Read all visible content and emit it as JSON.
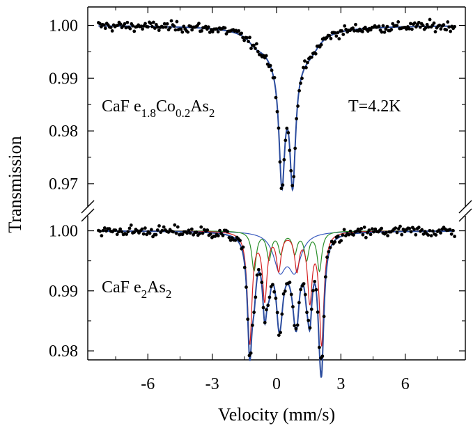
{
  "chart_data": {
    "type": "scatter",
    "xlabel": "Velocity (mm/s)",
    "ylabel": "Transmission",
    "xlim": [
      -8.8,
      8.8
    ],
    "x_ticks": [
      -6,
      -3,
      0,
      3,
      6
    ],
    "x_tick_labels": [
      "-6",
      "-3",
      "0",
      "3",
      "6"
    ],
    "grid": false,
    "panels": [
      {
        "annotation_main": "CaF e",
        "annotation_sub1": "1.8",
        "annotation_mid": "Co",
        "annotation_sub2": "0.2",
        "annotation_end": "As",
        "annotation_sub3": "2",
        "temperature_label": "T=4.2K",
        "ylim": [
          0.9655,
          1.0035
        ],
        "y_ticks": [
          0.97,
          0.98,
          0.99,
          1.0
        ],
        "y_tick_labels": [
          "0.97",
          "0.98",
          "0.99",
          "1.00"
        ],
        "fit_color": "#2b4c9e",
        "lines": [
          {
            "center": 0.25,
            "hwhm": 0.17,
            "depth": 0.024
          },
          {
            "center": 0.75,
            "hwhm": 0.17,
            "depth": 0.024
          },
          {
            "center": -0.15,
            "hwhm": 0.6,
            "depth": 0.003
          },
          {
            "center": 1.15,
            "hwhm": 0.6,
            "depth": 0.003
          },
          {
            "center": -0.95,
            "hwhm": 0.45,
            "depth": 0.0018
          },
          {
            "center": 1.65,
            "hwhm": 0.45,
            "depth": 0.0018
          },
          {
            "center": 0.5,
            "hwhm": 1.8,
            "depth": 0.0012
          }
        ],
        "noise": 0.0008,
        "x_start": -8.3,
        "x_end": 8.3,
        "n_points": 260
      },
      {
        "annotation_main": "CaF e",
        "annotation_sub1": "2",
        "annotation_end": "As",
        "annotation_sub2": "2",
        "ylim": [
          0.9785,
          1.0025
        ],
        "y_ticks": [
          0.98,
          0.99,
          1.0
        ],
        "y_tick_labels": [
          "0.98",
          "0.99",
          "1.00"
        ],
        "fit_color": "#2b4c9e",
        "magnetic_color": "#d42020",
        "magnetic_lines": [
          {
            "center": -1.25,
            "hwhm": 0.13,
            "depth": 0.0185
          },
          {
            "center": -0.55,
            "hwhm": 0.13,
            "depth": 0.011
          },
          {
            "center": 0.1,
            "hwhm": 0.13,
            "depth": 0.006
          },
          {
            "center": 0.95,
            "hwhm": 0.13,
            "depth": 0.006
          },
          {
            "center": 1.55,
            "hwhm": 0.13,
            "depth": 0.011
          },
          {
            "center": 2.1,
            "hwhm": 0.13,
            "depth": 0.0185
          }
        ],
        "green_color": "#2a8f2a",
        "green_lines": [
          {
            "center": -1.05,
            "hwhm": 0.13,
            "depth": 0.0065
          },
          {
            "center": -0.35,
            "hwhm": 0.13,
            "depth": 0.0045
          },
          {
            "center": 0.2,
            "hwhm": 0.13,
            "depth": 0.0035
          },
          {
            "center": 0.85,
            "hwhm": 0.13,
            "depth": 0.0035
          },
          {
            "center": 1.4,
            "hwhm": 0.13,
            "depth": 0.0045
          },
          {
            "center": 2.0,
            "hwhm": 0.13,
            "depth": 0.0065
          }
        ],
        "paramagnetic_color": "#3a5bbf",
        "paramagnetic_lines": [
          {
            "center": 0.15,
            "hwhm": 0.35,
            "depth": 0.006
          },
          {
            "center": 0.85,
            "hwhm": 0.35,
            "depth": 0.006
          }
        ],
        "noise": 0.0008,
        "x_start": -8.3,
        "x_end": 8.3,
        "n_points": 230
      }
    ]
  }
}
